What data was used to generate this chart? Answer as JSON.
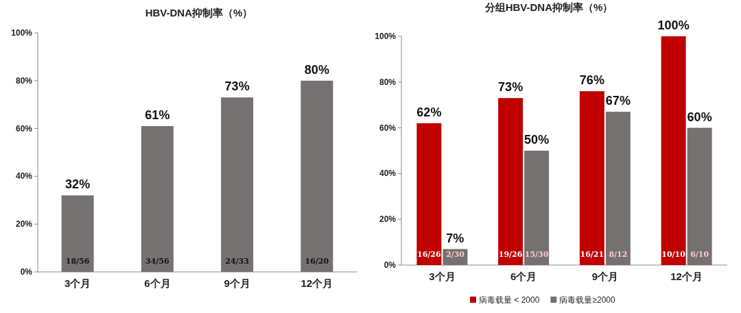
{
  "chart_data": [
    {
      "type": "bar",
      "title": "HBV-DNA抑制率（%）",
      "categories": [
        "3个月",
        "6个月",
        "9个月",
        "12个月"
      ],
      "values": [
        32,
        61,
        73,
        80
      ],
      "color": "#767171",
      "value_labels": [
        "32%",
        "61%",
        "73%",
        "80%"
      ],
      "ylim": [
        0,
        100
      ],
      "yticks": [
        {
          "value": 0,
          "label": "0%"
        },
        {
          "value": 20,
          "label": "20%"
        },
        {
          "value": 40,
          "label": "40%"
        },
        {
          "value": 60,
          "label": "60%"
        },
        {
          "value": 80,
          "label": "80%"
        },
        {
          "value": 100,
          "label": "100%"
        }
      ],
      "grid": false,
      "legend": false,
      "annotations": [
        "18/56",
        "34/56",
        "24/33",
        "16/20"
      ]
    },
    {
      "type": "bar",
      "title": "分组HBV-DNA抑制率（%）",
      "categories": [
        "3个月",
        "6个月",
        "9个月",
        "12个月"
      ],
      "series": [
        {
          "name": "病毒载量 < 2000",
          "color": "#c00000",
          "values": [
            62,
            73,
            76,
            100
          ],
          "value_labels": [
            "62%",
            "73%",
            "76%",
            "100%"
          ]
        },
        {
          "name": "病毒载量≥2000",
          "color": "#767171",
          "values": [
            7,
            50,
            67,
            60
          ],
          "value_labels": [
            "7%",
            "50%",
            "67%",
            "60%"
          ]
        }
      ],
      "ylim": [
        0,
        100
      ],
      "yticks": [
        {
          "value": 0,
          "label": "0%"
        },
        {
          "value": 20,
          "label": "20%"
        },
        {
          "value": 40,
          "label": "40%"
        },
        {
          "value": 60,
          "label": "60%"
        },
        {
          "value": 80,
          "label": "80%"
        },
        {
          "value": 100,
          "label": "100%"
        }
      ],
      "grid": false,
      "legend": "bottom",
      "annotations": [
        "16/26",
        "2/30",
        "19/26",
        "15/30",
        "16/21",
        "8/12",
        "10/10",
        "6/10"
      ]
    }
  ]
}
